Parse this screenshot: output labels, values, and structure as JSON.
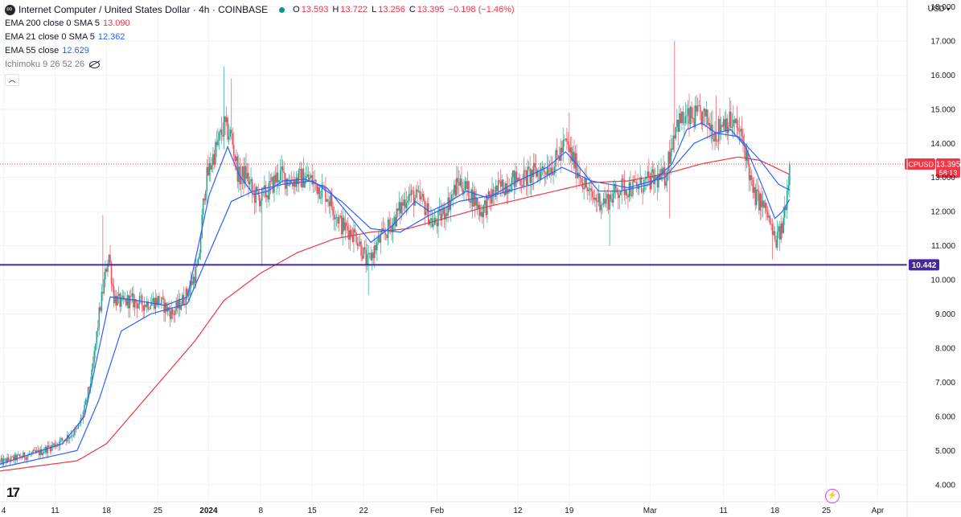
{
  "header": {
    "symbol_title": "Internet Computer / United States Dollar · 4h · COINBASE",
    "ohlc": {
      "o_label": "O",
      "o": "13.593",
      "h_label": "H",
      "h": "13.722",
      "l_label": "L",
      "l": "13.256",
      "c_label": "C",
      "c": "13.395",
      "change": "−0.198 (−1.46%)"
    },
    "status_color": "#089981"
  },
  "indicators": [
    {
      "label": "EMA 200 close 0 SMA 5",
      "value": "13.090",
      "color": "#f23645"
    },
    {
      "label": "EMA 21 close 0 SMA 5",
      "value": "12.362",
      "color": "#2962ff"
    },
    {
      "label": "EMA 55 close",
      "value": "12.629",
      "color": "#2962ff"
    },
    {
      "label": "Ichimoku 9 26 52 26",
      "value": "",
      "color": "#787b86"
    }
  ],
  "currency_label": "USD",
  "icons": {
    "collapse": "chevron-up-icon",
    "hidden": "eye-off-icon",
    "logo": "tradingview-logo-icon",
    "alert": "lightning-icon"
  },
  "colors": {
    "up": "#089981",
    "down": "#f23645",
    "ema200": "#f23645",
    "ema_fast": "#2962ff",
    "hline": "#4527a0"
  },
  "chart_data": {
    "type": "candlestick",
    "y_scale": {
      "min": 3.5,
      "max": 18.2
    },
    "y_ticks": [
      "4.000",
      "5.000",
      "6.000",
      "7.000",
      "8.000",
      "9.000",
      "10.000",
      "11.000",
      "12.000",
      "13.000",
      "14.000",
      "15.000",
      "16.000",
      "17.000",
      "18.000"
    ],
    "x_ticks": [
      {
        "label": "4",
        "t": 0.0
      },
      {
        "label": "11",
        "t": 7.0
      },
      {
        "label": "18",
        "t": 14.0
      },
      {
        "label": "25",
        "t": 21.0
      },
      {
        "label": "2024",
        "t": 27.9
      },
      {
        "label": "8",
        "t": 35.0
      },
      {
        "label": "15",
        "t": 42.0
      },
      {
        "label": "22",
        "t": 49.0
      },
      {
        "label": "Feb",
        "t": 59.0
      },
      {
        "label": "12",
        "t": 70.0
      },
      {
        "label": "19",
        "t": 77.0
      },
      {
        "label": "Mar",
        "t": 88.0
      },
      {
        "label": "11",
        "t": 98.0
      },
      {
        "label": "18",
        "t": 105.0
      },
      {
        "label": "25",
        "t": 112.0
      },
      {
        "label": "Apr",
        "t": 119.0
      }
    ],
    "x_domain": [
      -0.5,
      123
    ],
    "price_anchors": [
      [
        -0.5,
        4.65
      ],
      [
        2,
        4.8
      ],
      [
        5,
        4.95
      ],
      [
        8,
        5.3
      ],
      [
        10,
        5.6
      ],
      [
        11,
        6.2
      ],
      [
        12,
        7.2
      ],
      [
        13,
        9.0
      ],
      [
        14.3,
        10.8
      ],
      [
        15,
        9.5
      ],
      [
        16,
        9.3
      ],
      [
        17,
        9.4
      ],
      [
        19,
        9.3
      ],
      [
        21,
        9.4
      ],
      [
        23,
        9.0
      ],
      [
        25,
        9.6
      ],
      [
        26.5,
        10.4
      ],
      [
        27.4,
        12.8
      ],
      [
        28.5,
        13.6
      ],
      [
        30,
        14.5
      ],
      [
        31,
        14.2
      ],
      [
        32,
        13.0
      ],
      [
        33,
        13.1
      ],
      [
        34,
        12.5
      ],
      [
        35,
        12.4
      ],
      [
        36,
        12.6
      ],
      [
        37.5,
        13.1
      ],
      [
        39,
        12.9
      ],
      [
        41,
        13.0
      ],
      [
        42,
        12.9
      ],
      [
        44,
        12.5
      ],
      [
        46,
        11.6
      ],
      [
        48,
        11.3
      ],
      [
        49.5,
        10.5
      ],
      [
        51,
        11.1
      ],
      [
        53,
        11.7
      ],
      [
        55,
        12.5
      ],
      [
        57,
        12.3
      ],
      [
        58.5,
        11.6
      ],
      [
        60,
        12.0
      ],
      [
        62,
        12.9
      ],
      [
        64,
        12.4
      ],
      [
        65,
        12.0
      ],
      [
        67,
        12.6
      ],
      [
        69,
        12.9
      ],
      [
        71,
        13.0
      ],
      [
        73,
        13.2
      ],
      [
        75,
        13.4
      ],
      [
        76.5,
        14.0
      ],
      [
        78,
        13.3
      ],
      [
        80,
        12.4
      ],
      [
        82,
        12.3
      ],
      [
        84,
        12.7
      ],
      [
        86,
        12.7
      ],
      [
        88,
        12.9
      ],
      [
        90,
        13.0
      ],
      [
        91.5,
        14.6
      ],
      [
        93,
        14.7
      ],
      [
        95,
        14.8
      ],
      [
        96,
        14.6
      ],
      [
        97,
        14.3
      ],
      [
        98,
        14.7
      ],
      [
        99,
        14.6
      ],
      [
        100,
        14.4
      ],
      [
        101,
        13.8
      ],
      [
        102,
        12.5
      ],
      [
        103,
        12.3
      ],
      [
        104,
        11.9
      ],
      [
        105,
        11.1
      ],
      [
        106,
        11.5
      ],
      [
        106.6,
        12.5
      ],
      [
        107,
        13.39
      ]
    ],
    "extra_wicks": [
      [
        13.5,
        11.9
      ],
      [
        30,
        16.25
      ],
      [
        31,
        15.9
      ],
      [
        35.2,
        10.4
      ],
      [
        49.6,
        9.55
      ],
      [
        77,
        14.9
      ],
      [
        82.5,
        11.0
      ],
      [
        90.6,
        11.8
      ],
      [
        91.3,
        17.0
      ],
      [
        97,
        15.4
      ],
      [
        104.7,
        10.6
      ]
    ],
    "ema200_anchors": [
      [
        -0.5,
        4.4
      ],
      [
        10,
        4.7
      ],
      [
        14,
        5.2
      ],
      [
        20,
        6.7
      ],
      [
        26,
        8.2
      ],
      [
        30,
        9.4
      ],
      [
        35,
        10.2
      ],
      [
        40,
        10.8
      ],
      [
        45,
        11.2
      ],
      [
        50,
        11.4
      ],
      [
        55,
        11.5
      ],
      [
        60,
        11.8
      ],
      [
        65,
        12.1
      ],
      [
        70,
        12.35
      ],
      [
        75,
        12.6
      ],
      [
        80,
        12.85
      ],
      [
        85,
        12.9
      ],
      [
        90,
        13.1
      ],
      [
        95,
        13.4
      ],
      [
        100,
        13.6
      ],
      [
        103,
        13.5
      ],
      [
        107,
        13.09
      ]
    ],
    "ema21_anchors": [
      [
        -0.5,
        4.6
      ],
      [
        8,
        5.2
      ],
      [
        11,
        6.0
      ],
      [
        13,
        8.0
      ],
      [
        14.5,
        9.5
      ],
      [
        18,
        9.4
      ],
      [
        22,
        9.25
      ],
      [
        25,
        9.5
      ],
      [
        28,
        12.5
      ],
      [
        30.5,
        13.9
      ],
      [
        32,
        13.1
      ],
      [
        34,
        12.5
      ],
      [
        36,
        12.6
      ],
      [
        38,
        12.9
      ],
      [
        41,
        12.95
      ],
      [
        44,
        12.7
      ],
      [
        47,
        11.9
      ],
      [
        50,
        11.1
      ],
      [
        53,
        11.6
      ],
      [
        56,
        12.3
      ],
      [
        58,
        12.0
      ],
      [
        60,
        12.2
      ],
      [
        63,
        12.6
      ],
      [
        66,
        12.4
      ],
      [
        70,
        12.9
      ],
      [
        74,
        13.3
      ],
      [
        76.5,
        13.75
      ],
      [
        78,
        13.4
      ],
      [
        81,
        12.6
      ],
      [
        84,
        12.6
      ],
      [
        88,
        12.8
      ],
      [
        91,
        13.4
      ],
      [
        93,
        14.4
      ],
      [
        95,
        14.6
      ],
      [
        97,
        14.3
      ],
      [
        99,
        14.4
      ],
      [
        101,
        13.9
      ],
      [
        103,
        12.9
      ],
      [
        105,
        11.8
      ],
      [
        106,
        12.0
      ],
      [
        107,
        12.36
      ]
    ],
    "ema55_anchors": [
      [
        -0.5,
        4.5
      ],
      [
        10,
        5.0
      ],
      [
        13,
        6.5
      ],
      [
        16,
        8.5
      ],
      [
        20,
        9.0
      ],
      [
        25,
        9.3
      ],
      [
        28,
        10.8
      ],
      [
        31,
        12.3
      ],
      [
        34,
        12.6
      ],
      [
        38,
        12.8
      ],
      [
        42,
        12.9
      ],
      [
        46,
        12.3
      ],
      [
        50,
        11.5
      ],
      [
        54,
        11.4
      ],
      [
        58,
        11.9
      ],
      [
        62,
        12.3
      ],
      [
        67,
        12.5
      ],
      [
        72,
        12.8
      ],
      [
        76,
        13.3
      ],
      [
        80,
        12.9
      ],
      [
        85,
        12.7
      ],
      [
        90,
        13.0
      ],
      [
        94,
        14.0
      ],
      [
        97,
        14.3
      ],
      [
        100,
        14.2
      ],
      [
        103,
        13.5
      ],
      [
        105.5,
        12.8
      ],
      [
        107,
        12.63
      ]
    ],
    "horizontal_line": {
      "value": 10.442,
      "label": "10.442"
    },
    "last_price": {
      "value": 13.395,
      "symbol": "ICPUSD",
      "price": "13.395",
      "countdown": "58:13"
    }
  }
}
